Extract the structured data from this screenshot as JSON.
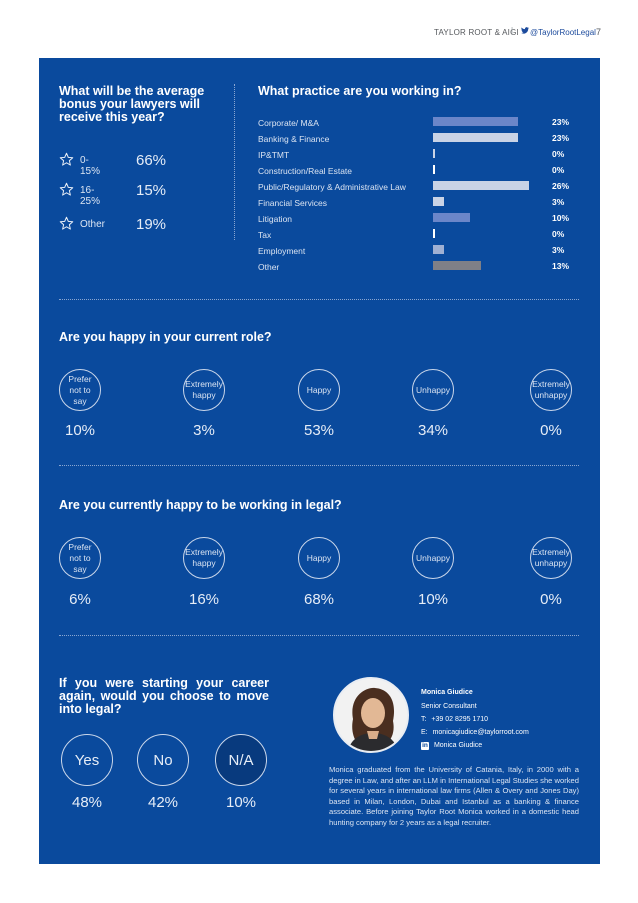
{
  "header": {
    "brand": "TAYLOR ROOT & AIGI",
    "separator": "|",
    "twitter_handle": "@TaylorRootLegal",
    "page_number": "7"
  },
  "bonus": {
    "title": "What will be the average bonus your lawyers will receive this year?",
    "rows": [
      {
        "label": "0-15%",
        "value": "66%"
      },
      {
        "label": "16-25%",
        "value": "15%"
      },
      {
        "label": "Other",
        "value": "19%"
      }
    ]
  },
  "practice": {
    "title": "What practice are you working in?",
    "rows": [
      {
        "label": "Corporate/ M&A",
        "value": "23%",
        "pct": 23,
        "color": "#6b86c9"
      },
      {
        "label": "Banking & Finance",
        "value": "23%",
        "pct": 23,
        "color": "#c9d3e6"
      },
      {
        "label": "IP&TMT",
        "value": "0%",
        "pct": 0,
        "color": "#c9d3e6"
      },
      {
        "label": "Construction/Real Estate",
        "value": "0%",
        "pct": 0,
        "color": "#ffffff"
      },
      {
        "label": "Public/Regulatory & Administrative Law",
        "value": "26%",
        "pct": 26,
        "color": "#c9d3e6"
      },
      {
        "label": "Financial Services",
        "value": "3%",
        "pct": 3,
        "color": "#c9d3e6"
      },
      {
        "label": "Litigation",
        "value": "10%",
        "pct": 10,
        "color": "#6b86c9"
      },
      {
        "label": "Tax",
        "value": "0%",
        "pct": 0,
        "color": "#ffffff"
      },
      {
        "label": "Employment",
        "value": "3%",
        "pct": 3,
        "color": "#9fb0d3"
      },
      {
        "label": "Other",
        "value": "13%",
        "pct": 13,
        "color": "#7f8087"
      }
    ]
  },
  "role": {
    "title": "Are you happy in your current role?",
    "items": [
      {
        "label": "Prefer not to say",
        "value": "10%"
      },
      {
        "label": "Extremely happy",
        "value": "3%"
      },
      {
        "label": "Happy",
        "value": "53%"
      },
      {
        "label": "Unhappy",
        "value": "34%"
      },
      {
        "label": "Extremely unhappy",
        "value": "0%"
      }
    ]
  },
  "legal": {
    "title": "Are you currently happy to be working in legal?",
    "items": [
      {
        "label": "Prefer not to say",
        "value": "6%"
      },
      {
        "label": "Extremely happy",
        "value": "16%"
      },
      {
        "label": "Happy",
        "value": "68%"
      },
      {
        "label": "Unhappy",
        "value": "10%"
      },
      {
        "label": "Extremely unhappy",
        "value": "0%"
      }
    ]
  },
  "career": {
    "title": "If you were starting your career again, would you choose to move into legal?",
    "items": [
      {
        "label": "Yes",
        "value": "48%"
      },
      {
        "label": "No",
        "value": "42%"
      },
      {
        "label": "N/A",
        "value": "10%"
      }
    ]
  },
  "consultant": {
    "name": "Monica Giudice",
    "role": "Senior Consultant",
    "phone_prefix": "T:",
    "phone": "+39 02 8295 1710",
    "email_prefix": "E:",
    "email": "monicagiudice@taylorroot.com",
    "linkedin_icon_text": "in",
    "linkedin": "Monica Giudice",
    "bio": "Monica graduated from the University of Catania, Italy, in 2000 with a degree in Law, and after an LLM in International Legal Studies she worked for several years in international law firms (Allen & Overy and Jones Day) based in Milan, London, Dubai and Istanbul as a banking & finance associate. Before joining Taylor Root Monica worked in a domestic head hunting company for 2 years as a legal recruiter."
  }
}
